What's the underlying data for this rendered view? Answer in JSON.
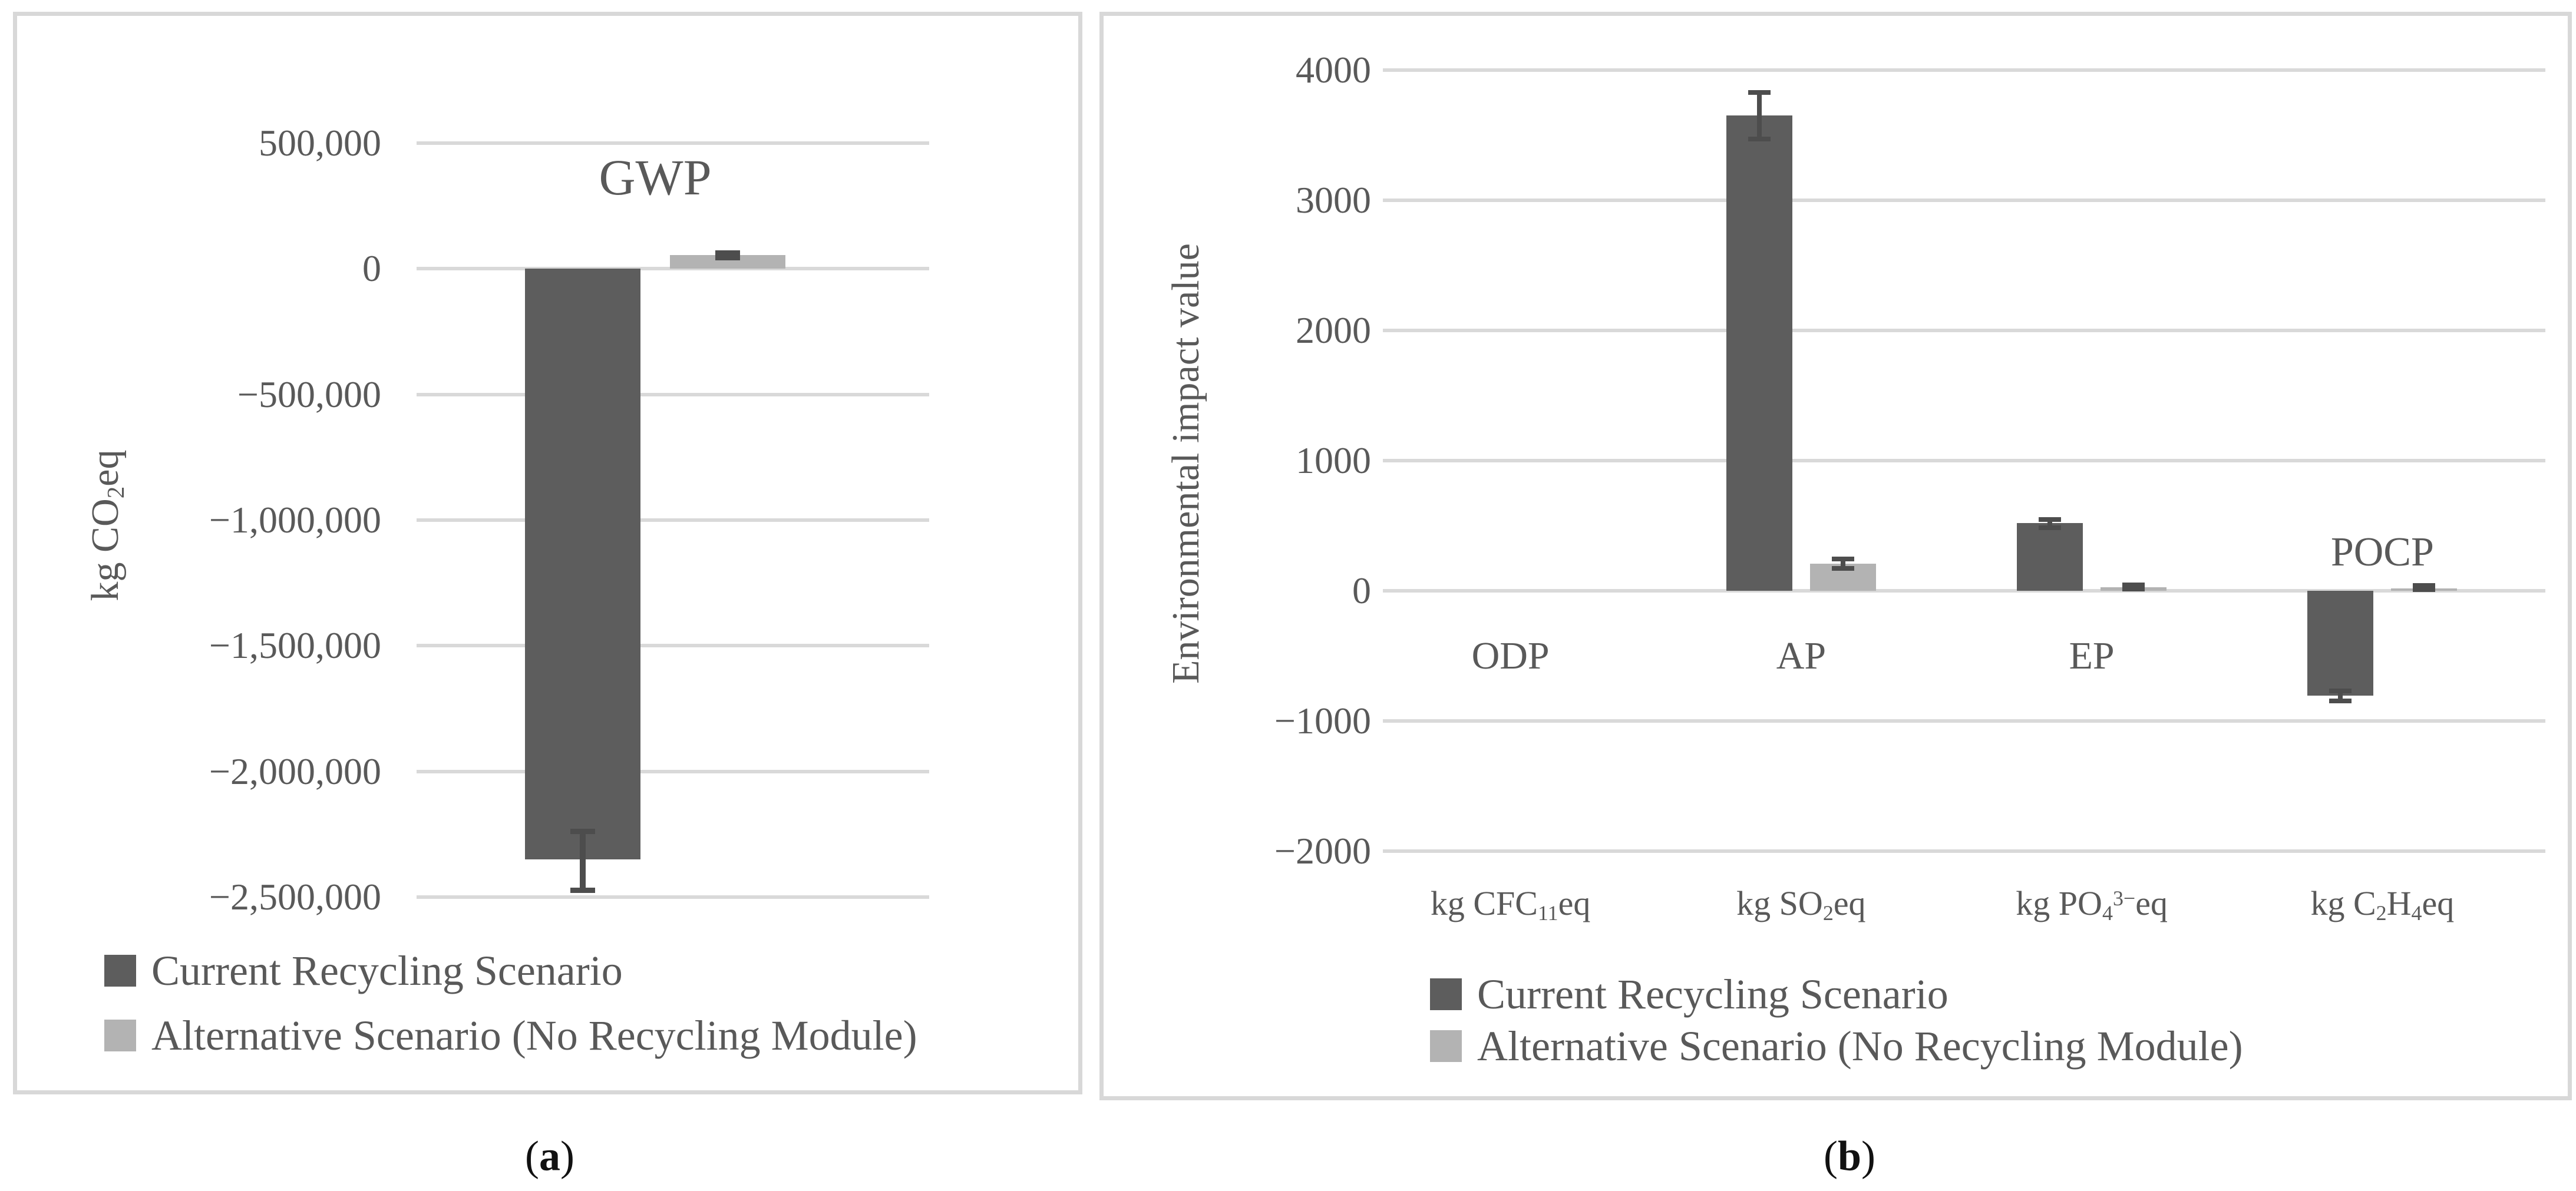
{
  "figure": {
    "caption_a": {
      "open": "(",
      "letter": "a",
      "close": ")"
    },
    "caption_b": {
      "open": "(",
      "letter": "b",
      "close": ")"
    }
  },
  "colors": {
    "series_dark": "#5d5d5d",
    "series_light": "#b3b3b3",
    "error_bar": "#4d4d4d",
    "gridline": "#d9d9d9",
    "panel_border": "#d8d8d8",
    "text": "#595959"
  },
  "legend": [
    {
      "label": "Current Recycling Scenario",
      "swatch": "series_dark"
    },
    {
      "label": "Alternative Scenario (No Recycling Module)",
      "swatch": "series_light"
    }
  ],
  "chart_data": [
    {
      "type": "bar",
      "panel": "a",
      "title": "GWP",
      "ylabel_tokens": [
        {
          "t": "kg CO"
        },
        {
          "sub": "2"
        },
        {
          "t": "eq"
        }
      ],
      "ylim": [
        -2500000,
        500000
      ],
      "ytick_step": 500000,
      "ytick_labels": [
        "500,000",
        "0",
        "−500,000",
        "−1,000,000",
        "−1,500,000",
        "−2,000,000",
        "−2,500,000"
      ],
      "grid": true,
      "legend_position": "bottom-left",
      "categories": [
        {
          "label": "GWP",
          "label_side": "above",
          "label_offset": 112,
          "label_class": "chart-title"
        }
      ],
      "series": [
        {
          "name": "Current Recycling Scenario",
          "color": "series_dark",
          "values": [
            -2350000
          ],
          "errors": [
            [
              -2472000,
              -2239000
            ]
          ]
        },
        {
          "name": "Alternative Scenario (No Recycling Module)",
          "color": "series_light",
          "values": [
            55000
          ],
          "errors": [
            [
              45000,
              64000
            ]
          ]
        }
      ]
    },
    {
      "type": "bar",
      "panel": "b",
      "title": "",
      "ylabel": "Environmental impact value",
      "ylim": [
        -2000,
        4000
      ],
      "ytick_step": 1000,
      "ytick_labels": [
        "4000",
        "3000",
        "2000",
        "1000",
        "0",
        "−1000",
        "−2000"
      ],
      "grid": true,
      "legend_position": "bottom-center",
      "categories": [
        {
          "label": "ODP",
          "label_side": "below",
          "label_offset": 78,
          "label_class": "cat-label",
          "unit_tokens": [
            {
              "t": "kg CFC"
            },
            {
              "sub": "11"
            },
            {
              "t": "eq"
            }
          ]
        },
        {
          "label": "AP",
          "label_side": "below",
          "label_offset": 78,
          "label_class": "cat-label",
          "unit_tokens": [
            {
              "t": "kg SO"
            },
            {
              "sub": "2"
            },
            {
              "t": "eq"
            }
          ]
        },
        {
          "label": "EP",
          "label_side": "below",
          "label_offset": 78,
          "label_class": "cat-label",
          "unit_tokens": [
            {
              "t": "kg PO"
            },
            {
              "sub": "4"
            },
            {
              "sup": "3−"
            },
            {
              "t": "eq"
            }
          ]
        },
        {
          "label": "POCP",
          "label_side": "above",
          "label_offset": 30,
          "label_class": "cat-label",
          "unit_tokens": [
            {
              "t": "kg C"
            },
            {
              "sub": "2"
            },
            {
              "t": "H"
            },
            {
              "sub": "4"
            },
            {
              "t": "eq"
            }
          ]
        }
      ],
      "series": [
        {
          "name": "Current Recycling Scenario",
          "color": "series_dark",
          "values": [
            0,
            3650,
            520,
            -805
          ],
          "errors": [
            null,
            [
              3470,
              3830
            ],
            [
              486,
              547
            ],
            [
              -846,
              -769
            ]
          ]
        },
        {
          "name": "Alternative Scenario (No Recycling Module)",
          "color": "series_light",
          "values": [
            0,
            210,
            25,
            20
          ],
          "errors": [
            null,
            [
              170,
              245
            ],
            [
              15,
              45
            ],
            [
              10,
              40
            ]
          ]
        }
      ]
    }
  ]
}
